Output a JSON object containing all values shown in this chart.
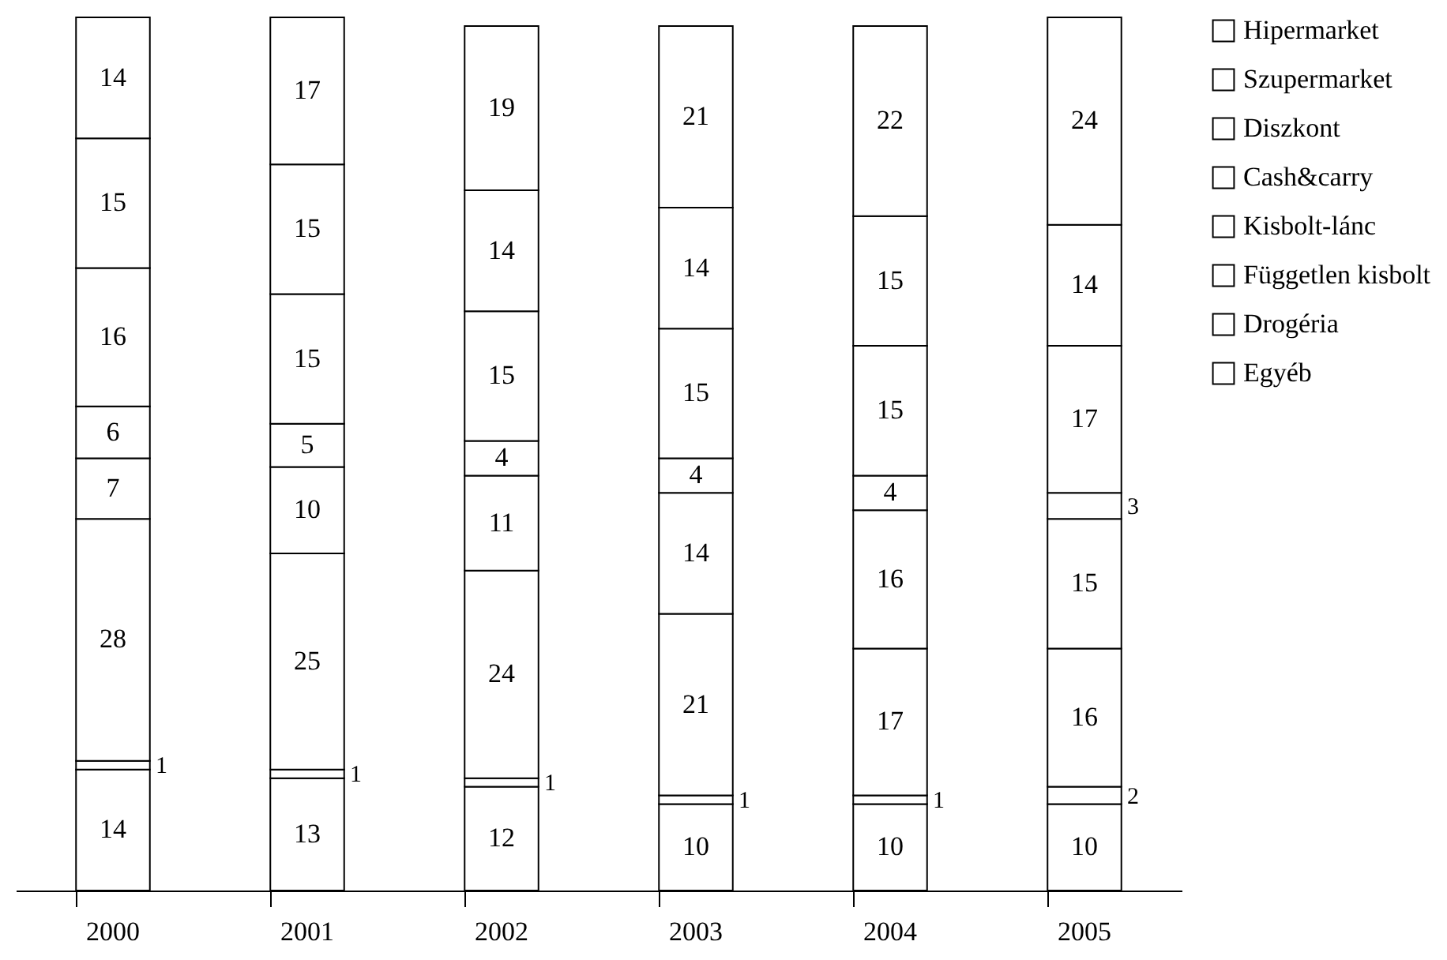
{
  "chart_data": {
    "type": "bar",
    "stacked": true,
    "data_labels": true,
    "legend": "right",
    "grid": false,
    "categories": [
      "2000",
      "2001",
      "2002",
      "2003",
      "2004",
      "2005"
    ],
    "series": [
      {
        "name": "Egyéb",
        "color": "#ffffff",
        "values": [
          14,
          13,
          12,
          10,
          10,
          10
        ]
      },
      {
        "name": "Drogéria",
        "color": "#ffffff",
        "values": [
          1,
          1,
          1,
          1,
          1,
          2
        ]
      },
      {
        "name": "Független kisbolt",
        "color": "#ffffff",
        "values": [
          28,
          25,
          24,
          21,
          17,
          16
        ]
      },
      {
        "name": "Kisbolt-lánc",
        "color": "#ffffff",
        "values": [
          7,
          10,
          11,
          14,
          16,
          15
        ]
      },
      {
        "name": "Cash&carry",
        "color": "#ffffff",
        "values": [
          6,
          5,
          4,
          4,
          4,
          3
        ]
      },
      {
        "name": "Diszkont",
        "color": "#ffffff",
        "values": [
          16,
          15,
          15,
          15,
          15,
          17
        ]
      },
      {
        "name": "Szupermarket",
        "color": "#ffffff",
        "values": [
          15,
          15,
          14,
          14,
          15,
          14
        ]
      },
      {
        "name": "Hipermarket",
        "color": "#ffffff",
        "values": [
          14,
          17,
          19,
          21,
          22,
          24
        ]
      }
    ]
  }
}
